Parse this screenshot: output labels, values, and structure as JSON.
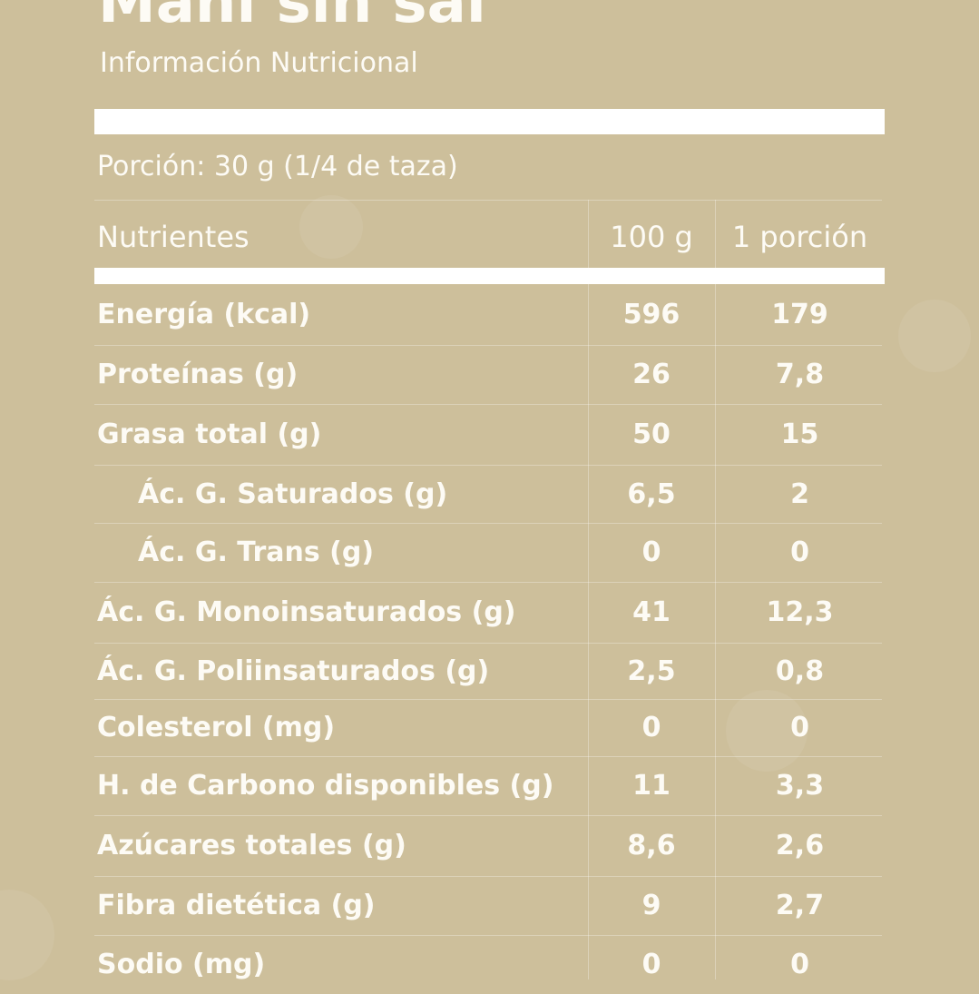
{
  "title": "Maní sin sal",
  "subtitle": "Información Nutricional",
  "portion": "Porción: 30 g (1/4 de taza)",
  "header": {
    "nutrient": "Nutrientes",
    "col1": "100 g",
    "col2": "1 porción"
  },
  "rows": [
    {
      "name": "Energía (kcal)",
      "per100": "596",
      "portion": "179"
    },
    {
      "name": "Proteínas (g)",
      "per100": "26",
      "portion": "7,8"
    },
    {
      "name": "Grasa total (g)",
      "per100": "50",
      "portion": "15"
    },
    {
      "name": "Ác. G. Saturados (g)",
      "per100": "6,5",
      "portion": "2"
    },
    {
      "name": "Ác. G. Trans (g)",
      "per100": "0",
      "portion": "0"
    },
    {
      "name": "Ác. G. Monoinsaturados (g)",
      "per100": "41",
      "portion": "12,3"
    },
    {
      "name": "Ác. G. Poliinsaturados (g)",
      "per100": "2,5",
      "portion": "0,8"
    },
    {
      "name": "Colesterol (mg)",
      "per100": "0",
      "portion": "0"
    },
    {
      "name": "H. de Carbono disponibles (g)",
      "per100": "11",
      "portion": "3,3"
    },
    {
      "name": "Azúcares totales (g)",
      "per100": "8,6",
      "portion": "2,6"
    },
    {
      "name": "Fibra dietética (g)",
      "per100": "9",
      "portion": "2,7"
    },
    {
      "name": "Sodio (mg)",
      "per100": "0",
      "portion": "0"
    }
  ]
}
